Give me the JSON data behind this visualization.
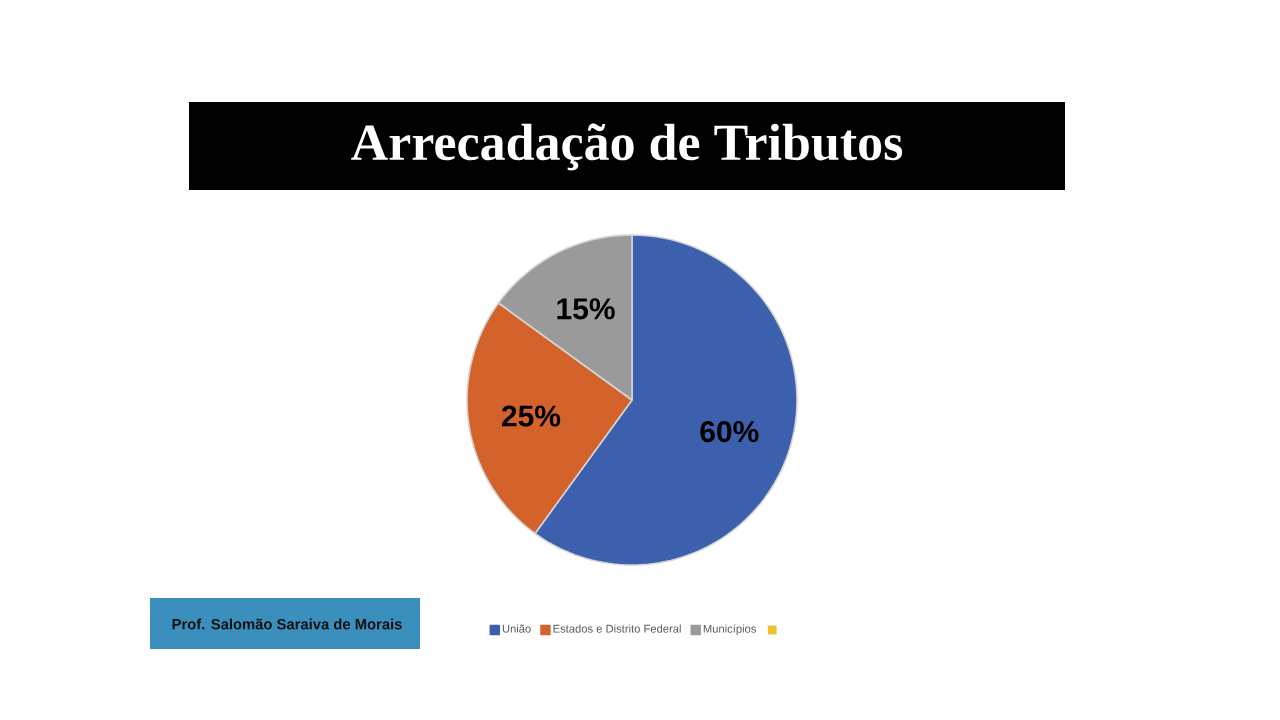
{
  "chart_data": {
    "type": "pie",
    "title": "Arrecadação de Tributos",
    "categories": [
      "União",
      "Estados e Distrito Federal",
      "Municípios"
    ],
    "values": [
      60,
      25,
      15
    ],
    "colors": [
      "#3c5fae",
      "#d3622b",
      "#9a9a9a"
    ],
    "value_labels": [
      "60%",
      "25%",
      "15%"
    ],
    "legend": "bottom",
    "annotations": [
      "Prof. Salomão Saraiva de Morais"
    ]
  }
}
